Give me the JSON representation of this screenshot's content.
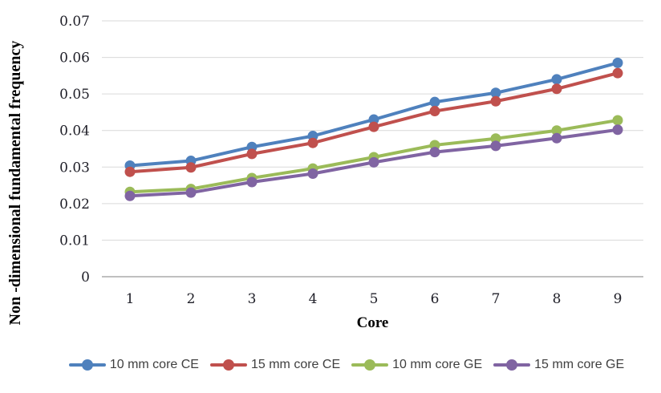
{
  "chart_data": {
    "type": "line",
    "title": "",
    "xlabel": "Core",
    "ylabel": "Non -dimensional fundamental frequency",
    "x": [
      "1",
      "2",
      "3",
      "4",
      "5",
      "6",
      "7",
      "8",
      "9"
    ],
    "ylim": [
      0,
      0.07
    ],
    "yticks": [
      {
        "value": 0,
        "label": "0"
      },
      {
        "value": 0.01,
        "label": "0.01"
      },
      {
        "value": 0.02,
        "label": "0.02"
      },
      {
        "value": 0.03,
        "label": "0.03"
      },
      {
        "value": 0.04,
        "label": "0.04"
      },
      {
        "value": 0.05,
        "label": "0.05"
      },
      {
        "value": 0.06,
        "label": "0.06"
      },
      {
        "value": 0.07,
        "label": "0.07"
      }
    ],
    "grid": true,
    "legend_position": "bottom",
    "series": [
      {
        "name": "10 mm core CE",
        "color": "#4F81BD",
        "values": [
          0.0304,
          0.0317,
          0.0355,
          0.0385,
          0.043,
          0.0478,
          0.0503,
          0.054,
          0.0585
        ]
      },
      {
        "name": "15 mm core CE",
        "color": "#C0504D",
        "values": [
          0.0287,
          0.0299,
          0.0336,
          0.0366,
          0.041,
          0.0453,
          0.048,
          0.0514,
          0.0557
        ]
      },
      {
        "name": "10 mm core GE",
        "color": "#9BBB59",
        "values": [
          0.0232,
          0.024,
          0.027,
          0.0296,
          0.0327,
          0.036,
          0.0378,
          0.04,
          0.0428
        ]
      },
      {
        "name": "15 mm core GE",
        "color": "#8064A2",
        "values": [
          0.0221,
          0.023,
          0.0259,
          0.0282,
          0.0313,
          0.0341,
          0.0358,
          0.0379,
          0.0402
        ]
      }
    ]
  },
  "colors": {
    "background": "#FFFFFF",
    "gridline": "#D9D9D9",
    "axis_line": "#BFBFBF",
    "tick_text": "#1F1F28",
    "axis_title_text": "#000000",
    "legend_text": "#3F3F3F"
  }
}
